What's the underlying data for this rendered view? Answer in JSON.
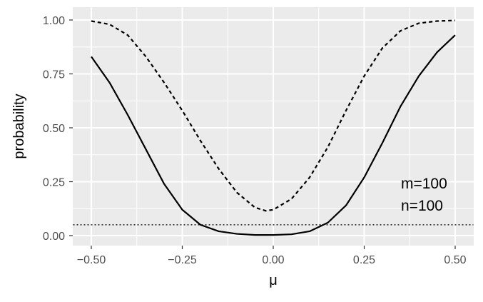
{
  "chart_data": {
    "type": "line",
    "xlabel": "μ",
    "ylabel": "probability",
    "xlim": [
      -0.5,
      0.5
    ],
    "ylim": [
      0,
      1
    ],
    "x_ticks": [
      "−0.50",
      "−0.25",
      "0.00",
      "0.25",
      "0.50"
    ],
    "x_tick_values": [
      -0.5,
      -0.25,
      0,
      0.25,
      0.5
    ],
    "y_ticks": [
      "0.00",
      "0.25",
      "0.50",
      "0.75",
      "1.00"
    ],
    "y_tick_values": [
      0,
      0.25,
      0.5,
      0.75,
      1
    ],
    "grid": true,
    "background": "#ebebeb",
    "grid_color": "#ffffff",
    "line_color": "#000000",
    "annotations": [
      "m=100",
      "n=100"
    ],
    "series": [
      {
        "style": "solid",
        "x": [
          -0.5,
          -0.45,
          -0.4,
          -0.35,
          -0.3,
          -0.25,
          -0.2,
          -0.15,
          -0.1,
          -0.05,
          0.0,
          0.05,
          0.1,
          0.15,
          0.2,
          0.25,
          0.3,
          0.35,
          0.4,
          0.45,
          0.5
        ],
        "values": [
          0.83,
          0.71,
          0.56,
          0.4,
          0.24,
          0.12,
          0.05,
          0.02,
          0.008,
          0.003,
          0.003,
          0.006,
          0.02,
          0.06,
          0.14,
          0.27,
          0.43,
          0.6,
          0.74,
          0.85,
          0.93
        ]
      },
      {
        "style": "dashed",
        "x": [
          -0.5,
          -0.45,
          -0.4,
          -0.35,
          -0.3,
          -0.25,
          -0.2,
          -0.15,
          -0.1,
          -0.05,
          -0.02,
          0.0,
          0.05,
          0.1,
          0.15,
          0.2,
          0.25,
          0.3,
          0.35,
          0.4,
          0.45,
          0.5
        ],
        "values": [
          0.995,
          0.98,
          0.93,
          0.83,
          0.71,
          0.58,
          0.44,
          0.31,
          0.2,
          0.13,
          0.115,
          0.12,
          0.17,
          0.27,
          0.41,
          0.58,
          0.74,
          0.87,
          0.95,
          0.985,
          0.995,
          0.998
        ]
      },
      {
        "style": "dotted",
        "x": [
          -0.55,
          0.55
        ],
        "values": [
          0.05,
          0.05
        ]
      }
    ]
  }
}
